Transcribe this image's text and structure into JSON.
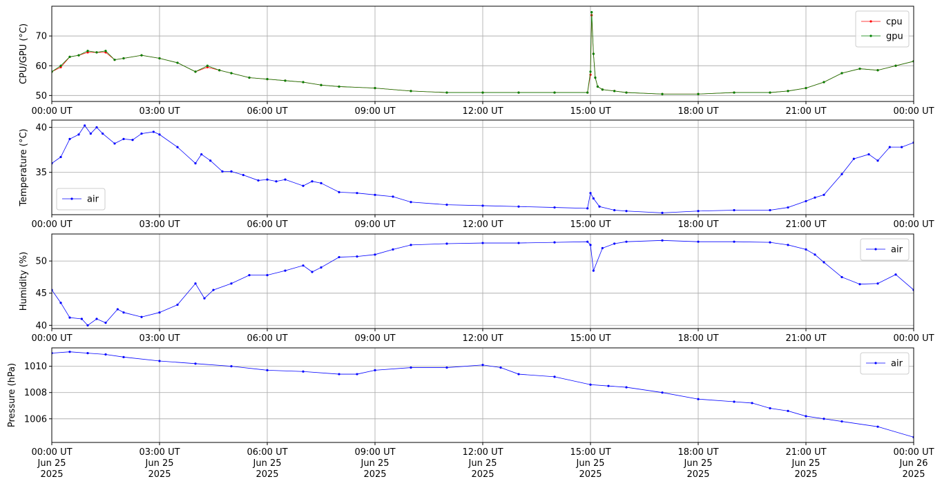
{
  "chart_data": [
    {
      "type": "line",
      "ylabel": "CPU/GPU (°C)",
      "ylim": [
        48,
        80
      ],
      "yticks": [
        50,
        60,
        70
      ],
      "xlim": [
        "2025-06-25 00:00",
        "2025-06-26 00:00"
      ],
      "grid": true,
      "legend_position": "top-right",
      "series": [
        {
          "name": "cpu",
          "color": "#ff0000",
          "x": [
            "2025-06-25 00:00",
            "2025-06-25 00:15",
            "2025-06-25 00:30",
            "2025-06-25 00:45",
            "2025-06-25 01:00",
            "2025-06-25 01:15",
            "2025-06-25 01:30",
            "2025-06-25 01:45",
            "2025-06-25 02:00",
            "2025-06-25 02:30",
            "2025-06-25 03:00",
            "2025-06-25 03:30",
            "2025-06-25 04:00",
            "2025-06-25 04:20",
            "2025-06-25 04:40",
            "2025-06-25 05:00",
            "2025-06-25 05:30",
            "2025-06-25 06:00",
            "2025-06-25 06:30",
            "2025-06-25 07:00",
            "2025-06-25 07:30",
            "2025-06-25 08:00",
            "2025-06-25 09:00",
            "2025-06-25 10:00",
            "2025-06-25 11:00",
            "2025-06-25 12:00",
            "2025-06-25 13:00",
            "2025-06-25 14:00",
            "2025-06-25 14:55",
            "2025-06-25 15:00",
            "2025-06-25 15:02",
            "2025-06-25 15:05",
            "2025-06-25 15:08",
            "2025-06-25 15:12",
            "2025-06-25 15:20",
            "2025-06-25 15:40",
            "2025-06-25 16:00",
            "2025-06-25 17:00",
            "2025-06-25 18:00",
            "2025-06-25 19:00",
            "2025-06-25 20:00",
            "2025-06-25 20:30",
            "2025-06-25 21:00",
            "2025-06-25 21:30",
            "2025-06-25 22:00",
            "2025-06-25 22:30",
            "2025-06-25 23:00",
            "2025-06-25 23:30",
            "2025-06-26 00:00"
          ],
          "y": [
            58,
            59.5,
            63,
            63.5,
            64.5,
            64.5,
            64.5,
            62,
            62.5,
            63.5,
            62.5,
            61,
            58,
            59.5,
            58.5,
            57.5,
            56,
            55.5,
            55,
            54.5,
            53.5,
            53,
            52.5,
            51.5,
            51,
            51,
            51,
            51,
            51,
            57,
            77,
            64,
            56,
            53,
            52,
            51.5,
            51,
            50.5,
            50.5,
            51,
            51,
            51.5,
            52.5,
            54.5,
            57.5,
            59,
            58.5,
            60,
            61.5
          ]
        },
        {
          "name": "gpu",
          "color": "#008000",
          "x": [
            "2025-06-25 00:00",
            "2025-06-25 00:15",
            "2025-06-25 00:30",
            "2025-06-25 00:45",
            "2025-06-25 01:00",
            "2025-06-25 01:15",
            "2025-06-25 01:30",
            "2025-06-25 01:45",
            "2025-06-25 02:00",
            "2025-06-25 02:30",
            "2025-06-25 03:00",
            "2025-06-25 03:30",
            "2025-06-25 04:00",
            "2025-06-25 04:20",
            "2025-06-25 04:40",
            "2025-06-25 05:00",
            "2025-06-25 05:30",
            "2025-06-25 06:00",
            "2025-06-25 06:30",
            "2025-06-25 07:00",
            "2025-06-25 07:30",
            "2025-06-25 08:00",
            "2025-06-25 09:00",
            "2025-06-25 10:00",
            "2025-06-25 11:00",
            "2025-06-25 12:00",
            "2025-06-25 13:00",
            "2025-06-25 14:00",
            "2025-06-25 14:55",
            "2025-06-25 15:00",
            "2025-06-25 15:02",
            "2025-06-25 15:05",
            "2025-06-25 15:08",
            "2025-06-25 15:12",
            "2025-06-25 15:20",
            "2025-06-25 15:40",
            "2025-06-25 16:00",
            "2025-06-25 17:00",
            "2025-06-25 18:00",
            "2025-06-25 19:00",
            "2025-06-25 20:00",
            "2025-06-25 20:30",
            "2025-06-25 21:00",
            "2025-06-25 21:30",
            "2025-06-25 22:00",
            "2025-06-25 22:30",
            "2025-06-25 23:00",
            "2025-06-25 23:30",
            "2025-06-26 00:00"
          ],
          "y": [
            58,
            60,
            63,
            63.5,
            65,
            64.5,
            65,
            62,
            62.5,
            63.5,
            62.5,
            61,
            58,
            60,
            58.5,
            57.5,
            56,
            55.5,
            55,
            54.5,
            53.5,
            53,
            52.5,
            51.5,
            51,
            51,
            51,
            51,
            51,
            58,
            78,
            64,
            56,
            53,
            52,
            51.5,
            51,
            50.5,
            50.5,
            51,
            51,
            51.5,
            52.5,
            54.5,
            57.5,
            59,
            58.5,
            60,
            61.5
          ]
        }
      ]
    },
    {
      "type": "line",
      "ylabel": "Temperature (°C)",
      "ylim": [
        30.3,
        40.8
      ],
      "yticks": [
        35,
        40
      ],
      "xlim": [
        "2025-06-25 00:00",
        "2025-06-26 00:00"
      ],
      "grid": true,
      "legend_position": "bottom-left",
      "series": [
        {
          "name": "air",
          "color": "#0000ff",
          "x": [
            "2025-06-25 00:00",
            "2025-06-25 00:15",
            "2025-06-25 00:30",
            "2025-06-25 00:45",
            "2025-06-25 00:55",
            "2025-06-25 01:05",
            "2025-06-25 01:15",
            "2025-06-25 01:25",
            "2025-06-25 01:45",
            "2025-06-25 02:00",
            "2025-06-25 02:15",
            "2025-06-25 02:30",
            "2025-06-25 02:50",
            "2025-06-25 03:00",
            "2025-06-25 03:30",
            "2025-06-25 04:00",
            "2025-06-25 04:10",
            "2025-06-25 04:25",
            "2025-06-25 04:45",
            "2025-06-25 05:00",
            "2025-06-25 05:20",
            "2025-06-25 05:45",
            "2025-06-25 06:00",
            "2025-06-25 06:15",
            "2025-06-25 06:30",
            "2025-06-25 07:00",
            "2025-06-25 07:15",
            "2025-06-25 07:30",
            "2025-06-25 08:00",
            "2025-06-25 08:30",
            "2025-06-25 09:00",
            "2025-06-25 09:30",
            "2025-06-25 10:00",
            "2025-06-25 11:00",
            "2025-06-25 12:00",
            "2025-06-25 13:00",
            "2025-06-25 14:00",
            "2025-06-25 14:55",
            "2025-06-25 15:00",
            "2025-06-25 15:05",
            "2025-06-25 15:15",
            "2025-06-25 15:40",
            "2025-06-25 16:00",
            "2025-06-25 17:00",
            "2025-06-25 18:00",
            "2025-06-25 19:00",
            "2025-06-25 20:00",
            "2025-06-25 20:30",
            "2025-06-25 21:00",
            "2025-06-25 21:15",
            "2025-06-25 21:30",
            "2025-06-25 22:00",
            "2025-06-25 22:20",
            "2025-06-25 22:45",
            "2025-06-25 23:00",
            "2025-06-25 23:20",
            "2025-06-25 23:40",
            "2025-06-26 00:00"
          ],
          "y": [
            36,
            36.7,
            38.7,
            39.2,
            40.2,
            39.3,
            40,
            39.3,
            38.2,
            38.7,
            38.6,
            39.3,
            39.5,
            39.2,
            37.8,
            36,
            37,
            36.3,
            35.1,
            35.1,
            34.7,
            34.1,
            34.2,
            34,
            34.2,
            33.5,
            34,
            33.8,
            32.8,
            32.7,
            32.5,
            32.3,
            31.7,
            31.4,
            31.3,
            31.2,
            31.1,
            31,
            32.7,
            32.1,
            31.2,
            30.8,
            30.7,
            30.5,
            30.7,
            30.8,
            30.8,
            31.1,
            31.8,
            32.2,
            32.5,
            34.8,
            36.5,
            37,
            36.3,
            37.8,
            37.8,
            38.3
          ]
        }
      ]
    },
    {
      "type": "line",
      "ylabel": "Humidity (%)",
      "ylim": [
        39.5,
        54.2
      ],
      "yticks": [
        40,
        45,
        50
      ],
      "xlim": [
        "2025-06-25 00:00",
        "2025-06-26 00:00"
      ],
      "grid": true,
      "legend_position": "top-right",
      "series": [
        {
          "name": "air",
          "color": "#0000ff",
          "x": [
            "2025-06-25 00:00",
            "2025-06-25 00:15",
            "2025-06-25 00:30",
            "2025-06-25 00:50",
            "2025-06-25 01:00",
            "2025-06-25 01:15",
            "2025-06-25 01:30",
            "2025-06-25 01:50",
            "2025-06-25 02:00",
            "2025-06-25 02:30",
            "2025-06-25 03:00",
            "2025-06-25 03:30",
            "2025-06-25 04:00",
            "2025-06-25 04:15",
            "2025-06-25 04:30",
            "2025-06-25 05:00",
            "2025-06-25 05:30",
            "2025-06-25 06:00",
            "2025-06-25 06:30",
            "2025-06-25 07:00",
            "2025-06-25 07:15",
            "2025-06-25 07:30",
            "2025-06-25 08:00",
            "2025-06-25 08:30",
            "2025-06-25 09:00",
            "2025-06-25 09:30",
            "2025-06-25 10:00",
            "2025-06-25 11:00",
            "2025-06-25 12:00",
            "2025-06-25 13:00",
            "2025-06-25 14:00",
            "2025-06-25 14:55",
            "2025-06-25 15:00",
            "2025-06-25 15:05",
            "2025-06-25 15:20",
            "2025-06-25 15:40",
            "2025-06-25 16:00",
            "2025-06-25 17:00",
            "2025-06-25 18:00",
            "2025-06-25 19:00",
            "2025-06-25 20:00",
            "2025-06-25 20:30",
            "2025-06-25 21:00",
            "2025-06-25 21:15",
            "2025-06-25 21:30",
            "2025-06-25 22:00",
            "2025-06-25 22:30",
            "2025-06-25 23:00",
            "2025-06-25 23:30",
            "2025-06-26 00:00"
          ],
          "y": [
            45.5,
            43.5,
            41.2,
            41,
            40,
            41,
            40.4,
            42.5,
            42,
            41.3,
            42,
            43.2,
            46.5,
            44.2,
            45.5,
            46.5,
            47.8,
            47.8,
            48.5,
            49.3,
            48.3,
            49,
            50.6,
            50.7,
            51,
            51.8,
            52.5,
            52.7,
            52.8,
            52.8,
            52.9,
            53,
            52.5,
            48.5,
            52,
            52.7,
            53,
            53.2,
            53,
            53,
            52.9,
            52.5,
            51.8,
            51,
            49.8,
            47.5,
            46.4,
            46.5,
            47.9,
            45.5
          ]
        }
      ]
    },
    {
      "type": "line",
      "ylabel": "Pressure (hPa)",
      "ylim": [
        1004.2,
        1011.4
      ],
      "yticks": [
        1006,
        1008,
        1010
      ],
      "xlim": [
        "2025-06-25 00:00",
        "2025-06-26 00:00"
      ],
      "grid": true,
      "legend_position": "top-right",
      "series": [
        {
          "name": "air",
          "color": "#0000ff",
          "x": [
            "2025-06-25 00:00",
            "2025-06-25 00:30",
            "2025-06-25 01:00",
            "2025-06-25 01:30",
            "2025-06-25 02:00",
            "2025-06-25 03:00",
            "2025-06-25 04:00",
            "2025-06-25 05:00",
            "2025-06-25 06:00",
            "2025-06-25 07:00",
            "2025-06-25 08:00",
            "2025-06-25 08:30",
            "2025-06-25 09:00",
            "2025-06-25 10:00",
            "2025-06-25 11:00",
            "2025-06-25 12:00",
            "2025-06-25 12:30",
            "2025-06-25 13:00",
            "2025-06-25 14:00",
            "2025-06-25 15:00",
            "2025-06-25 15:30",
            "2025-06-25 16:00",
            "2025-06-25 17:00",
            "2025-06-25 18:00",
            "2025-06-25 19:00",
            "2025-06-25 19:30",
            "2025-06-25 20:00",
            "2025-06-25 20:30",
            "2025-06-25 21:00",
            "2025-06-25 21:30",
            "2025-06-25 22:00",
            "2025-06-25 23:00",
            "2025-06-26 00:00"
          ],
          "y": [
            1011,
            1011.1,
            1011,
            1010.9,
            1010.7,
            1010.4,
            1010.2,
            1010,
            1009.7,
            1009.6,
            1009.4,
            1009.4,
            1009.7,
            1009.9,
            1009.9,
            1010.1,
            1009.9,
            1009.4,
            1009.2,
            1008.6,
            1008.5,
            1008.4,
            1008,
            1007.5,
            1007.3,
            1007.2,
            1006.8,
            1006.6,
            1006.2,
            1006,
            1005.8,
            1005.4,
            1004.6
          ]
        }
      ]
    }
  ],
  "x_axis": {
    "tick_labels": [
      "00:00 UT",
      "03:00 UT",
      "06:00 UT",
      "09:00 UT",
      "12:00 UT",
      "15:00 UT",
      "18:00 UT",
      "21:00 UT",
      "00:00 UT"
    ],
    "bottom_date_lines": [
      "Jun 25",
      "Jun 25",
      "Jun 25",
      "Jun 25",
      "Jun 25",
      "Jun 25",
      "Jun 25",
      "Jun 25",
      "Jun 26"
    ],
    "bottom_year_lines": [
      "2025",
      "2025",
      "2025",
      "2025",
      "2025",
      "2025",
      "2025",
      "2025",
      "2025"
    ]
  }
}
